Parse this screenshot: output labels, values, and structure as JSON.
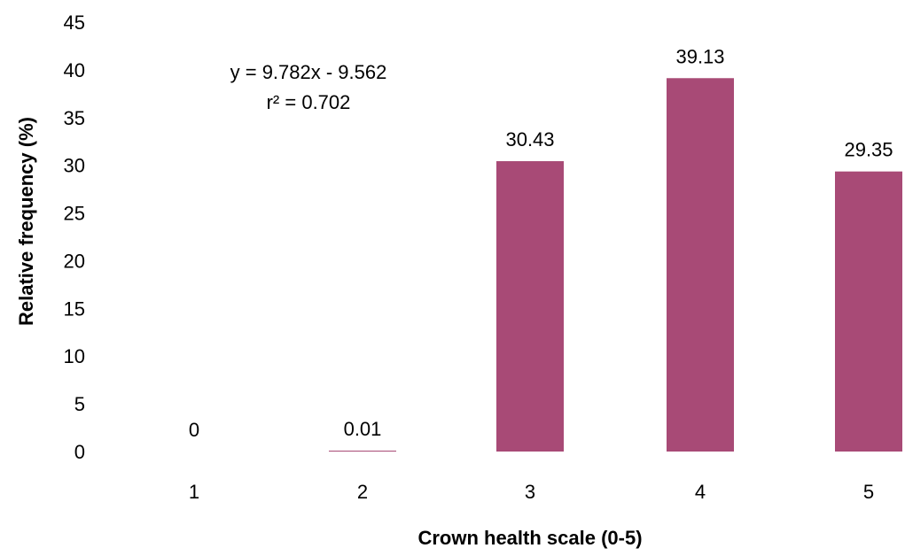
{
  "chart_data": {
    "type": "bar",
    "categories": [
      "1",
      "2",
      "3",
      "4",
      "5"
    ],
    "values": [
      0,
      0.01,
      30.43,
      39.13,
      29.35
    ],
    "data_labels": [
      "0",
      "0.01",
      "30.43",
      "39.13",
      "29.35"
    ],
    "title": "",
    "xlabel": "Crown health scale (0-5)",
    "ylabel": "Relative frequency (%)",
    "ylim": [
      0,
      45
    ],
    "yticks": [
      "0",
      "5",
      "10",
      "15",
      "20",
      "25",
      "30",
      "35",
      "40",
      "45"
    ],
    "grid": false,
    "legend": "none",
    "bar_color": "#a84a76",
    "annotations": [
      "y = 9.782x - 9.562",
      "r² = 0.702"
    ]
  }
}
